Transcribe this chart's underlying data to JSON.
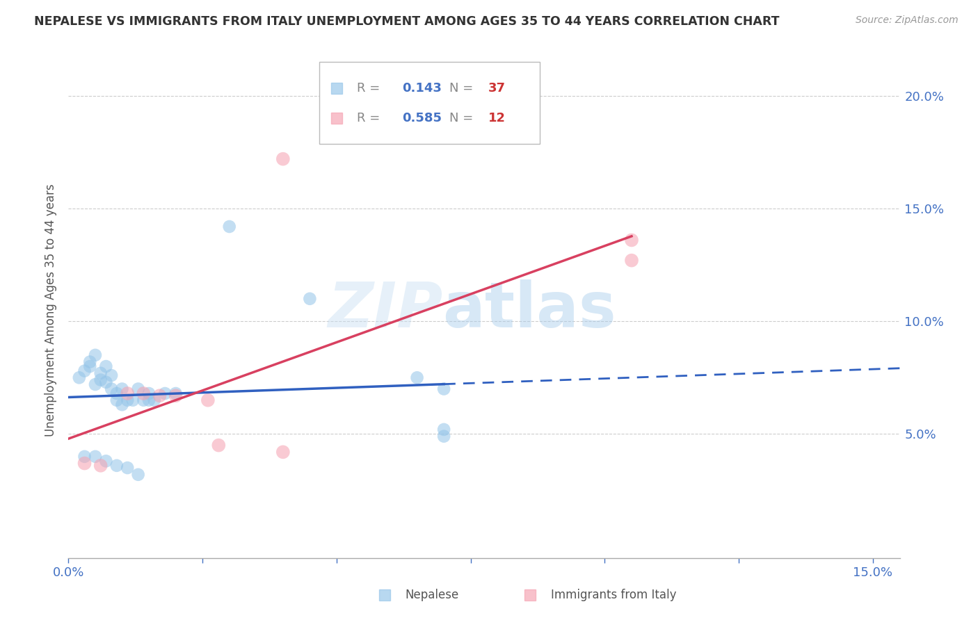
{
  "title": "NEPALESE VS IMMIGRANTS FROM ITALY UNEMPLOYMENT AMONG AGES 35 TO 44 YEARS CORRELATION CHART",
  "source": "Source: ZipAtlas.com",
  "ylabel": "Unemployment Among Ages 35 to 44 years",
  "xlim": [
    0.0,
    0.155
  ],
  "ylim": [
    -0.005,
    0.215
  ],
  "blue_R": "0.143",
  "blue_N": "37",
  "pink_R": "0.585",
  "pink_N": "12",
  "blue_color": "#93c4e8",
  "pink_color": "#f5a0b0",
  "blue_line_color": "#3060c0",
  "pink_line_color": "#d84060",
  "nepalese_x": [
    0.002,
    0.003,
    0.004,
    0.004,
    0.005,
    0.005,
    0.006,
    0.006,
    0.007,
    0.007,
    0.008,
    0.008,
    0.009,
    0.009,
    0.01,
    0.01,
    0.011,
    0.012,
    0.013,
    0.014,
    0.015,
    0.015,
    0.016,
    0.018,
    0.02,
    0.003,
    0.005,
    0.007,
    0.009,
    0.011,
    0.013,
    0.03,
    0.045,
    0.07,
    0.07,
    0.065,
    0.07
  ],
  "nepalese_y": [
    0.075,
    0.078,
    0.08,
    0.082,
    0.085,
    0.072,
    0.077,
    0.074,
    0.08,
    0.073,
    0.076,
    0.07,
    0.068,
    0.065,
    0.07,
    0.063,
    0.065,
    0.065,
    0.07,
    0.065,
    0.068,
    0.065,
    0.065,
    0.068,
    0.068,
    0.04,
    0.04,
    0.038,
    0.036,
    0.035,
    0.032,
    0.142,
    0.11,
    0.049,
    0.052,
    0.075,
    0.07
  ],
  "italy_x": [
    0.003,
    0.006,
    0.011,
    0.014,
    0.017,
    0.02,
    0.026,
    0.028,
    0.04,
    0.105,
    0.105,
    0.04
  ],
  "italy_y": [
    0.037,
    0.036,
    0.068,
    0.068,
    0.067,
    0.067,
    0.065,
    0.045,
    0.172,
    0.136,
    0.127,
    0.042
  ],
  "blue_line_x_solid_end": 0.07,
  "blue_line_x_dash_end": 0.155
}
